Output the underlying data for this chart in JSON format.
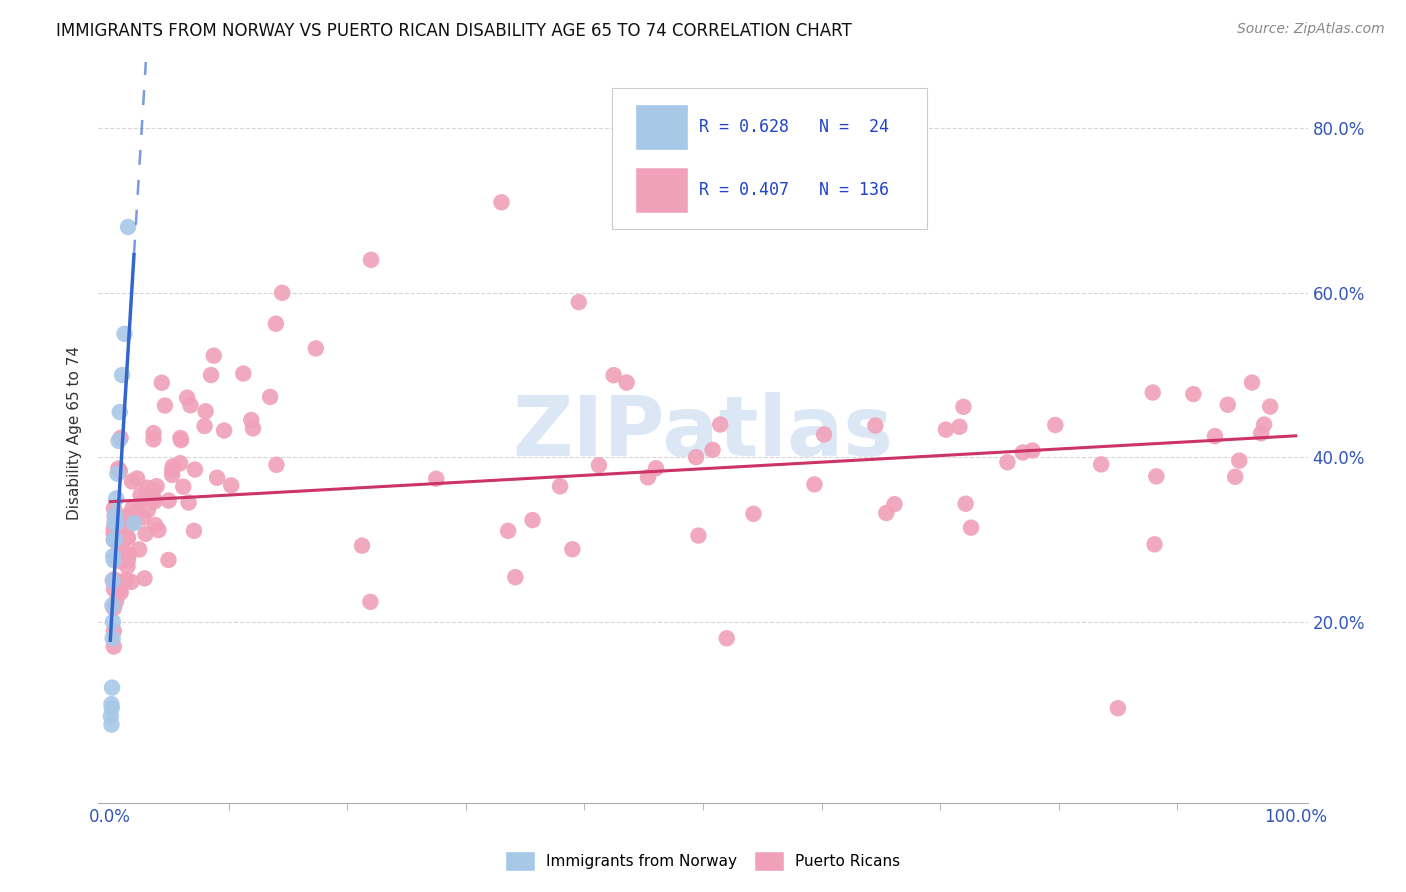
{
  "title": "IMMIGRANTS FROM NORWAY VS PUERTO RICAN DISABILITY AGE 65 TO 74 CORRELATION CHART",
  "source": "Source: ZipAtlas.com",
  "ylabel": "Disability Age 65 to 74",
  "R1": 0.628,
  "N1": 24,
  "R2": 0.407,
  "N2": 136,
  "color1": "#a8c8e8",
  "color2": "#f0a0b8",
  "trendline1_color": "#3366cc",
  "trendline2_color": "#cc3366",
  "legend_label1": "Immigrants from Norway",
  "legend_label2": "Puerto Ricans",
  "watermark_text": "ZIPatlas",
  "watermark_color": "#c5d8f0",
  "norway_x": [
    0.0005,
    0.001,
    0.001,
    0.0012,
    0.0015,
    0.0018,
    0.002,
    0.002,
    0.0022,
    0.0025,
    0.003,
    0.003,
    0.0035,
    0.004,
    0.004,
    0.005,
    0.005,
    0.006,
    0.007,
    0.008,
    0.01,
    0.012,
    0.015,
    0.02
  ],
  "norway_y": [
    0.085,
    0.075,
    0.1,
    0.095,
    0.12,
    0.22,
    0.25,
    0.18,
    0.2,
    0.28,
    0.3,
    0.275,
    0.32,
    0.33,
    0.3,
    0.35,
    0.32,
    0.38,
    0.42,
    0.455,
    0.5,
    0.55,
    0.68,
    0.32
  ],
  "pr_x": [
    0.01,
    0.012,
    0.015,
    0.018,
    0.02,
    0.02,
    0.022,
    0.025,
    0.025,
    0.028,
    0.03,
    0.03,
    0.032,
    0.035,
    0.035,
    0.038,
    0.04,
    0.04,
    0.042,
    0.045,
    0.045,
    0.048,
    0.05,
    0.05,
    0.052,
    0.055,
    0.055,
    0.058,
    0.06,
    0.06,
    0.065,
    0.07,
    0.07,
    0.072,
    0.075,
    0.075,
    0.08,
    0.08,
    0.082,
    0.085,
    0.09,
    0.09,
    0.092,
    0.095,
    0.1,
    0.1,
    0.105,
    0.11,
    0.11,
    0.115,
    0.12,
    0.12,
    0.125,
    0.13,
    0.13,
    0.135,
    0.14,
    0.14,
    0.145,
    0.15,
    0.15,
    0.155,
    0.16,
    0.16,
    0.165,
    0.17,
    0.175,
    0.18,
    0.185,
    0.19,
    0.2,
    0.21,
    0.22,
    0.23,
    0.24,
    0.25,
    0.26,
    0.27,
    0.28,
    0.3,
    0.32,
    0.34,
    0.36,
    0.38,
    0.4,
    0.4,
    0.42,
    0.45,
    0.48,
    0.5,
    0.52,
    0.55,
    0.58,
    0.6,
    0.62,
    0.65,
    0.68,
    0.7,
    0.72,
    0.75,
    0.78,
    0.8,
    0.82,
    0.85,
    0.88,
    0.9,
    0.92,
    0.93,
    0.95,
    0.97,
    0.98,
    0.99,
    1.0,
    1.0,
    0.005,
    0.008,
    0.015,
    0.025,
    0.035,
    0.04,
    0.045,
    0.055,
    0.065,
    0.075,
    0.085,
    0.095,
    0.105,
    0.115,
    0.125,
    0.135,
    0.145,
    0.155,
    0.165,
    0.175,
    0.185,
    0.2
  ],
  "pr_y": [
    0.28,
    0.3,
    0.29,
    0.27,
    0.32,
    0.25,
    0.31,
    0.28,
    0.35,
    0.3,
    0.29,
    0.33,
    0.31,
    0.28,
    0.34,
    0.32,
    0.3,
    0.35,
    0.28,
    0.33,
    0.29,
    0.31,
    0.34,
    0.27,
    0.32,
    0.3,
    0.36,
    0.29,
    0.33,
    0.27,
    0.31,
    0.35,
    0.29,
    0.32,
    0.28,
    0.34,
    0.3,
    0.36,
    0.31,
    0.29,
    0.33,
    0.27,
    0.35,
    0.3,
    0.32,
    0.28,
    0.34,
    0.31,
    0.29,
    0.33,
    0.3,
    0.36,
    0.32,
    0.29,
    0.35,
    0.31,
    0.28,
    0.34,
    0.3,
    0.33,
    0.27,
    0.35,
    0.32,
    0.29,
    0.36,
    0.31,
    0.34,
    0.3,
    0.33,
    0.28,
    0.35,
    0.32,
    0.29,
    0.36,
    0.31,
    0.34,
    0.3,
    0.33,
    0.28,
    0.35,
    0.36,
    0.33,
    0.37,
    0.35,
    0.38,
    0.36,
    0.39,
    0.37,
    0.4,
    0.38,
    0.41,
    0.39,
    0.42,
    0.4,
    0.43,
    0.41,
    0.42,
    0.44,
    0.41,
    0.43,
    0.42,
    0.44,
    0.41,
    0.43,
    0.42,
    0.44,
    0.41,
    0.43,
    0.42,
    0.44,
    0.42,
    0.43,
    0.41,
    0.4,
    0.25,
    0.23,
    0.24,
    0.26,
    0.27,
    0.25,
    0.26,
    0.24,
    0.25,
    0.27,
    0.26,
    0.24,
    0.25,
    0.26,
    0.24,
    0.25,
    0.26,
    0.24,
    0.25,
    0.26,
    0.24,
    0.25
  ],
  "xlim": [
    -0.01,
    1.01
  ],
  "ylim": [
    -0.02,
    0.88
  ],
  "xtick_vals": [
    0.0,
    1.0
  ],
  "xtick_labels": [
    "0.0%",
    "100.0%"
  ],
  "ytick_vals": [
    0.2,
    0.4,
    0.6,
    0.8
  ],
  "ytick_labels": [
    "20.0%",
    "40.0%",
    "60.0%",
    "80.0%"
  ],
  "tick_fontsize": 12,
  "title_fontsize": 12,
  "source_fontsize": 10,
  "ylabel_fontsize": 11
}
